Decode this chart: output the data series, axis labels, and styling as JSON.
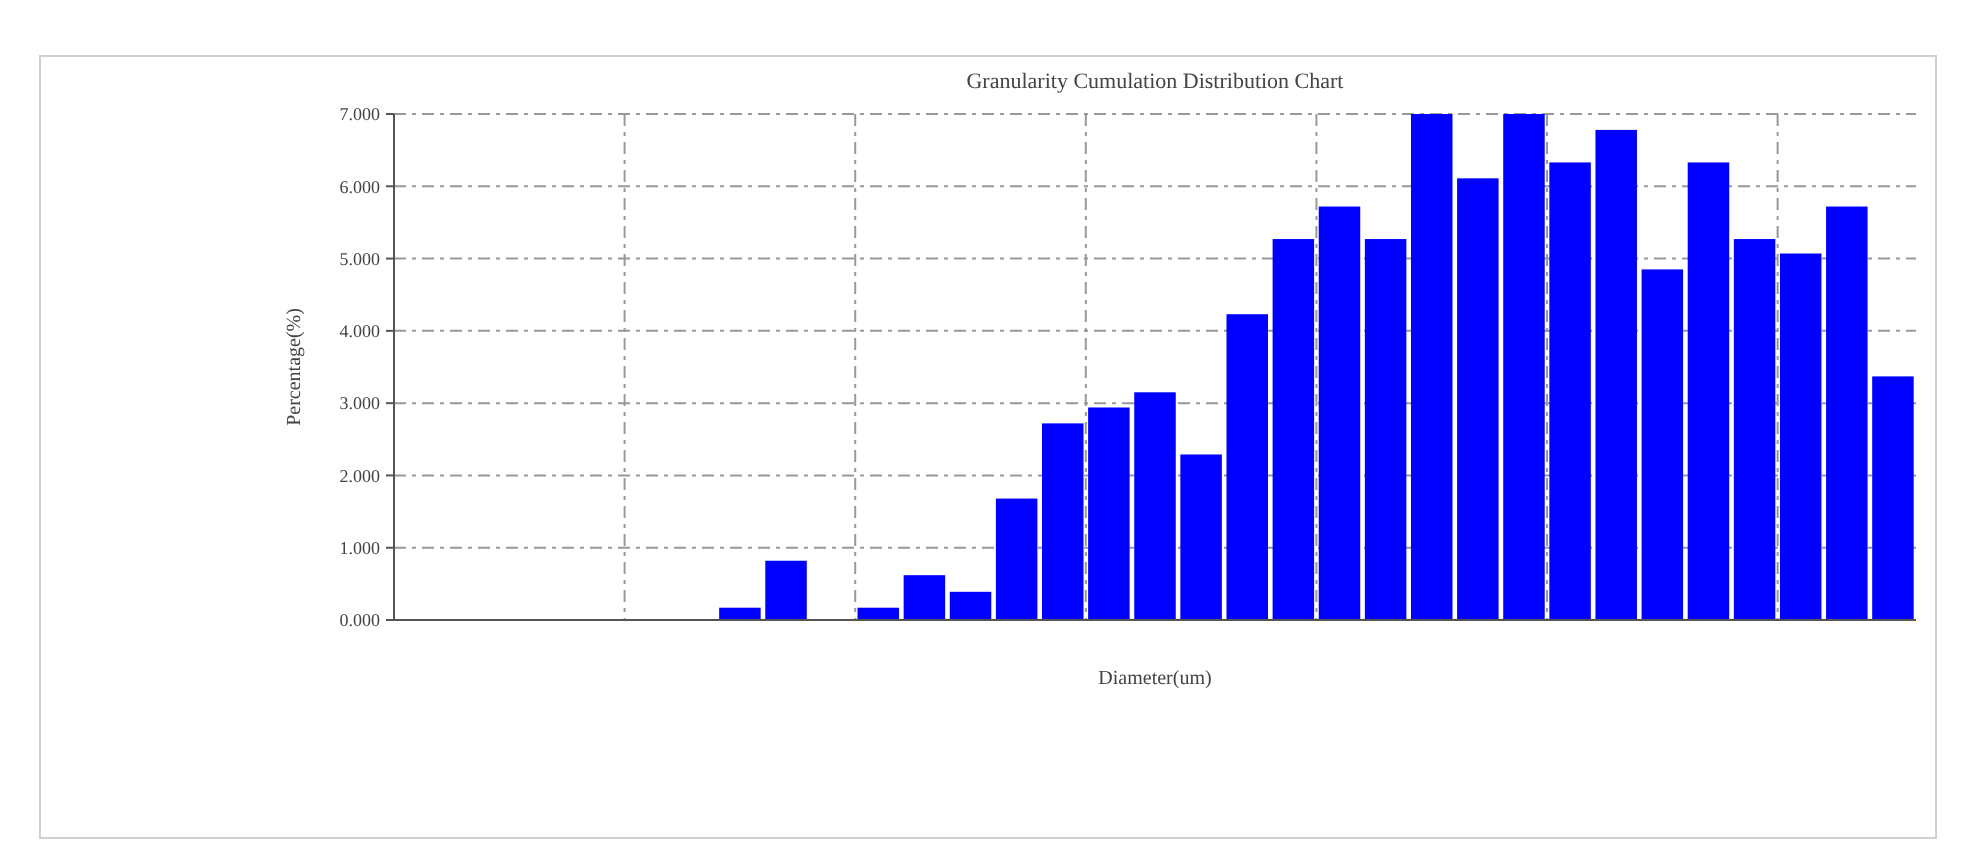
{
  "chart_data": {
    "type": "bar",
    "title": "Granularity Cumulation Distribution Chart",
    "xlabel": "Diameter(um)",
    "ylabel": "Percentage(%)",
    "categories": [
      null,
      null,
      null,
      null,
      null,
      null,
      null,
      null,
      null,
      null,
      null,
      null,
      null,
      null,
      null,
      null,
      null,
      null,
      null,
      null,
      null,
      null,
      null,
      null,
      null,
      null,
      null,
      null,
      null,
      null,
      null,
      null,
      null
    ],
    "values": [
      0,
      0,
      0,
      0,
      0,
      0,
      0,
      0.17,
      0.82,
      0,
      0.17,
      0.62,
      0.39,
      1.68,
      2.72,
      2.94,
      3.15,
      2.29,
      4.23,
      5.27,
      5.72,
      5.27,
      7.0,
      6.11,
      7.0,
      6.33,
      6.78,
      4.85,
      6.33,
      5.27,
      5.07,
      5.72,
      3.37
    ],
    "color": "#0000ff",
    "ylim": [
      0,
      7
    ],
    "yticks": [
      {
        "value": 0,
        "label": "0.000"
      },
      {
        "value": 1,
        "label": "1.000"
      },
      {
        "value": 2,
        "label": "2.000"
      },
      {
        "value": 3,
        "label": "3.000"
      },
      {
        "value": 4,
        "label": "4.000"
      },
      {
        "value": 5,
        "label": "5.000"
      },
      {
        "value": 6,
        "label": "6.000"
      },
      {
        "value": 7,
        "label": "7.000"
      }
    ],
    "grid": true
  }
}
